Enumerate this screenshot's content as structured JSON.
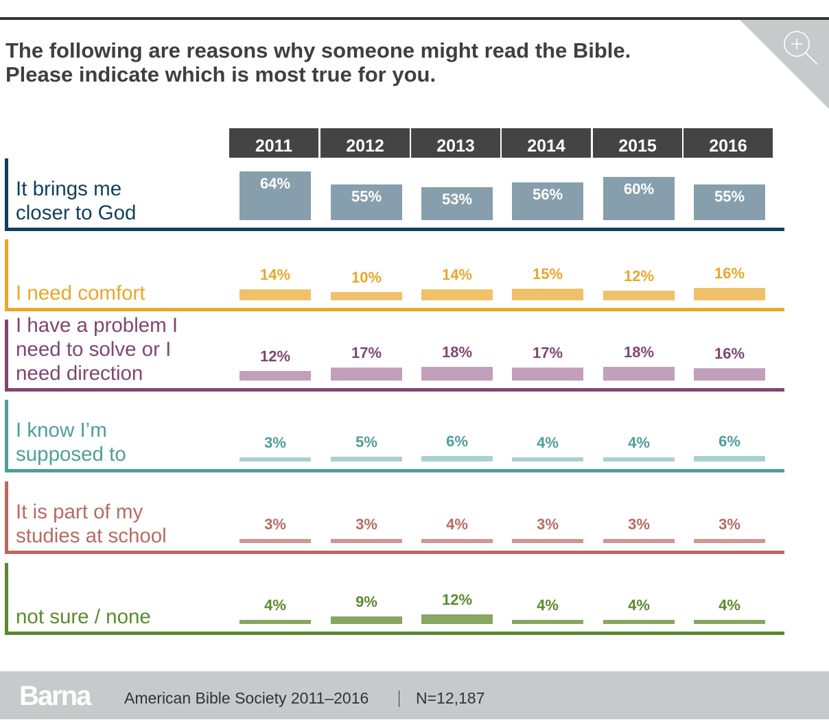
{
  "header": {
    "title_lines": [
      "The following are reasons why someone might read the Bible.",
      "Please indicate which is most true for you."
    ],
    "zoom_icon": "zoom-in-icon"
  },
  "chart_data": {
    "type": "bar",
    "title": "The following are reasons why someone might read the Bible. Please indicate which is most true for you.",
    "xlabel": "",
    "ylabel": "",
    "categories": [
      "2011",
      "2012",
      "2013",
      "2014",
      "2015",
      "2016"
    ],
    "value_unit": "%",
    "series": [
      {
        "name": "It brings me closer to God",
        "label_lines": [
          "It brings me",
          "closer to God"
        ],
        "values": [
          64,
          55,
          53,
          56,
          60,
          55
        ],
        "color": "#0f3f5a",
        "bar_color": "#879fac",
        "value_color": "#ffffff"
      },
      {
        "name": "I need comfort",
        "label_lines": [
          "I need comfort"
        ],
        "values": [
          14,
          10,
          14,
          15,
          12,
          16
        ],
        "color": "#e9a62a",
        "bar_color": "#f0c16a",
        "value_color": "#e9a62a"
      },
      {
        "name": "I have a problem I need to solve or I need direction",
        "label_lines": [
          "I have a problem I",
          "need to solve or I",
          "need direction"
        ],
        "values": [
          12,
          17,
          18,
          17,
          18,
          16
        ],
        "color": "#7e4672",
        "bar_color": "#c0a0ba",
        "value_color": "#7e4672"
      },
      {
        "name": "I know I’m supposed to",
        "label_lines": [
          "I know I’m",
          "supposed to"
        ],
        "values": [
          3,
          5,
          6,
          4,
          4,
          6
        ],
        "color": "#4e9e99",
        "bar_color": "#a9d1cf",
        "value_color": "#4e9e99"
      },
      {
        "name": "It is part of my studies at school",
        "label_lines": [
          "It is part of my",
          "studies at school"
        ],
        "values": [
          3,
          3,
          4,
          3,
          3,
          3
        ],
        "color": "#b86a62",
        "bar_color": "#d0968f",
        "value_color": "#b86a62"
      },
      {
        "name": "not sure / none",
        "label_lines": [
          "not sure / none"
        ],
        "values": [
          4,
          9,
          12,
          4,
          4,
          4
        ],
        "color": "#5b8a2e",
        "bar_color": "#86a661",
        "value_color": "#5b8a2e"
      }
    ],
    "legend": "none",
    "grid": false
  },
  "footer": {
    "logo": "Barna",
    "source": "American Bible Society 2011–2016",
    "separator": "|",
    "sample": "N=12,187"
  }
}
